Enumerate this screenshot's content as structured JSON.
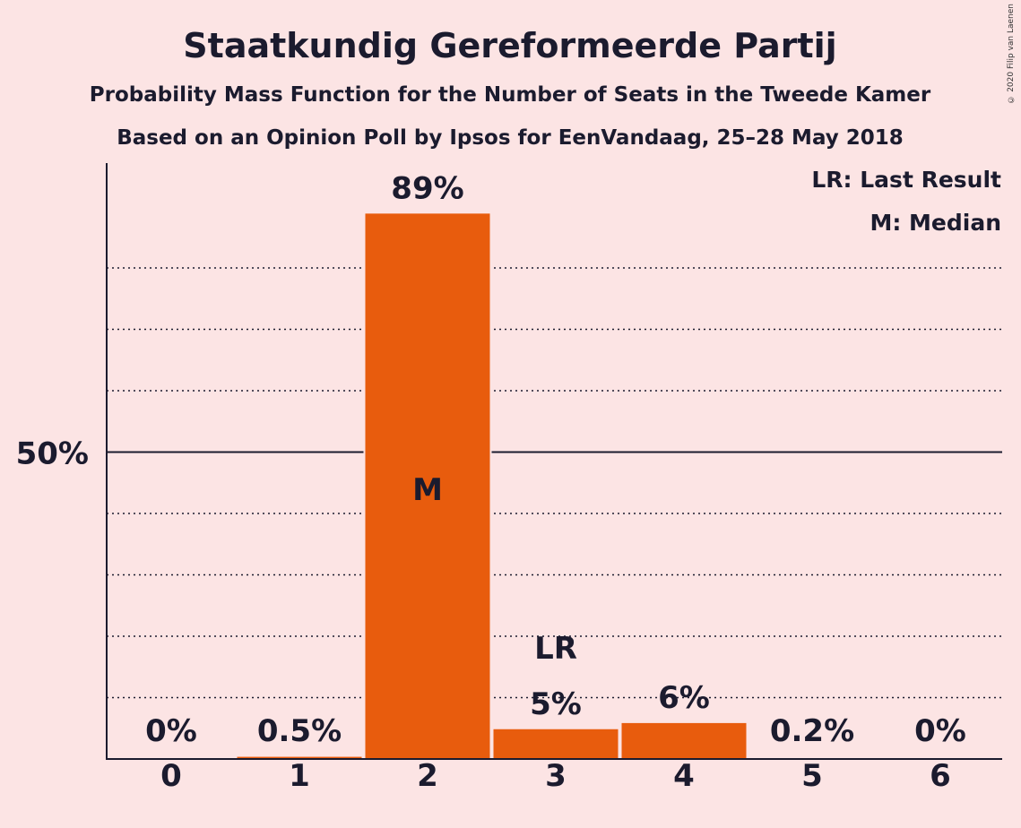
{
  "title": "Staatkundig Gereformeerde Partij",
  "subtitle1": "Probability Mass Function for the Number of Seats in the Tweede Kamer",
  "subtitle2": "Based on an Opinion Poll by Ipsos for EenVandaag, 25–28 May 2018",
  "copyright": "© 2020 Filip van Laenen",
  "legend": {
    "lr": "LR: Last Result",
    "m": "M: Median"
  },
  "colors": {
    "bar": "#e85c0d",
    "background": "#fce4e4",
    "text": "#1b1b2e"
  },
  "chart_data": {
    "type": "bar",
    "categories": [
      "0",
      "1",
      "2",
      "3",
      "4",
      "5",
      "6"
    ],
    "values": [
      0,
      0.5,
      89,
      5,
      6,
      0.2,
      0
    ],
    "value_labels": [
      "0%",
      "0.5%",
      "89%",
      "5%",
      "6%",
      "0.2%",
      "0%"
    ],
    "ylim": [
      0,
      97
    ],
    "yticks": [
      {
        "value": 50,
        "label": "50%"
      }
    ],
    "minor_gridlines": [
      10,
      20,
      30,
      40,
      60,
      70,
      80
    ],
    "median_index": 2,
    "median_marker": "M",
    "last_result_index": 3,
    "last_result_marker": "LR",
    "legend_position": "top-right"
  }
}
